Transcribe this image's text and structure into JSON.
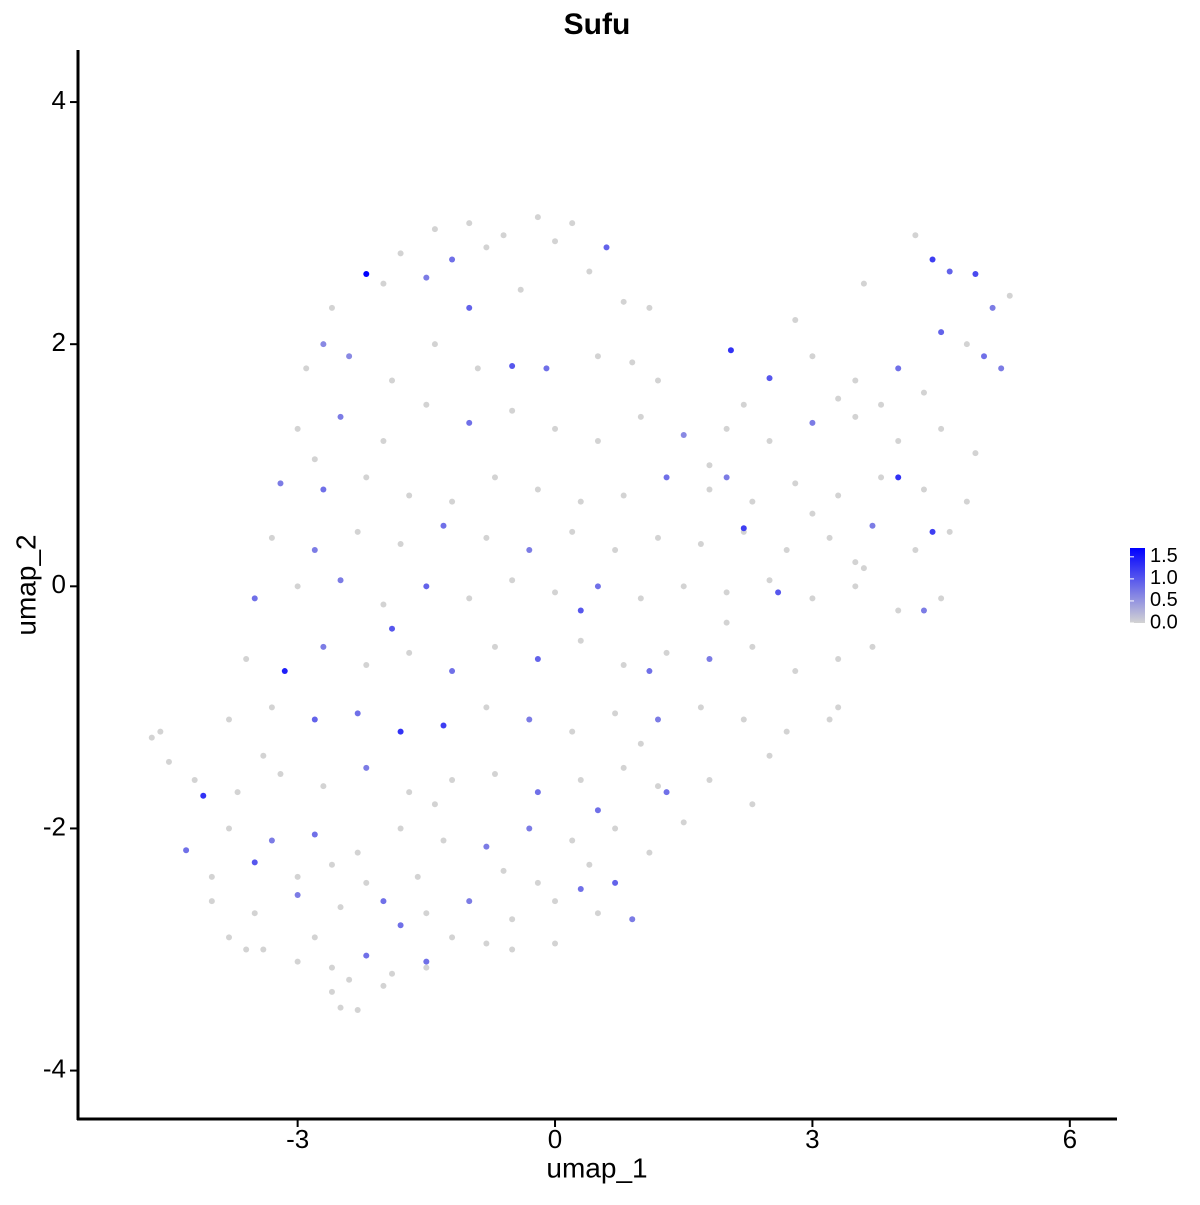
{
  "chart_data": {
    "type": "scatter",
    "title": "Sufu",
    "xlabel": "umap_1",
    "ylabel": "umap_2",
    "x": [
      -1.4,
      -1.0,
      -0.6,
      -0.2,
      0.2,
      -1.8,
      -1.2,
      -0.8,
      0.0,
      0.6,
      -2.2,
      -2.6,
      -2.0,
      -1.5,
      -0.4,
      0.4,
      0.8,
      -2.7,
      1.1,
      -1.0,
      -2.9,
      -2.4,
      -1.9,
      -1.4,
      -0.9,
      -0.5,
      -0.1,
      0.5,
      0.9,
      1.2,
      4.2,
      4.4,
      4.6,
      4.9,
      5.1,
      5.3,
      4.5,
      4.8,
      3.6,
      2.8,
      2.05,
      2.5,
      3.0,
      3.5,
      4.0,
      2.2,
      3.3,
      4.3,
      5.0,
      5.2,
      -3.0,
      -2.5,
      -2.0,
      -1.5,
      -1.0,
      -0.5,
      0.0,
      0.5,
      1.0,
      1.5,
      2.0,
      2.5,
      3.0,
      3.5,
      4.0,
      4.5,
      4.9,
      1.8,
      3.8,
      -2.8,
      -3.2,
      -2.7,
      -2.2,
      -1.7,
      -1.2,
      -0.7,
      -0.2,
      0.3,
      0.8,
      1.3,
      1.8,
      2.3,
      2.8,
      3.3,
      3.8,
      4.3,
      4.8,
      4.0,
      2.0,
      3.0,
      -3.3,
      -2.8,
      -2.3,
      -1.8,
      -1.3,
      -0.8,
      -0.3,
      0.2,
      0.7,
      1.2,
      1.7,
      2.2,
      2.7,
      3.2,
      3.7,
      4.2,
      4.6,
      4.4,
      2.2,
      3.5,
      -3.5,
      -3.0,
      -2.5,
      -2.0,
      -1.5,
      -1.0,
      -0.5,
      0.0,
      0.5,
      1.0,
      1.5,
      2.0,
      2.5,
      3.0,
      3.5,
      4.0,
      4.5,
      2.6,
      3.6,
      4.3,
      -3.6,
      -3.15,
      -2.7,
      -2.2,
      -1.7,
      -1.2,
      -0.7,
      -0.2,
      0.3,
      0.8,
      1.3,
      1.8,
      2.3,
      2.8,
      3.3,
      3.7,
      1.1,
      2.0,
      0.3,
      -1.9,
      -3.8,
      -3.3,
      -2.8,
      -2.3,
      -1.8,
      -1.3,
      -0.8,
      -0.3,
      0.2,
      0.7,
      1.2,
      1.7,
      2.2,
      2.7,
      3.2,
      3.3,
      1.0,
      -4.7,
      -4.6,
      -4.5,
      -4.2,
      -3.7,
      -3.2,
      -2.7,
      -2.2,
      -1.7,
      -1.2,
      -0.7,
      -0.2,
      0.3,
      0.8,
      1.3,
      1.8,
      2.3,
      2.5,
      -4.1,
      -3.4,
      0.5,
      -1.4,
      1.2,
      -4.3,
      -3.8,
      -3.3,
      -2.8,
      -2.3,
      -1.8,
      -1.3,
      -0.8,
      -0.3,
      0.2,
      0.7,
      1.1,
      1.5,
      -3.5,
      -2.6,
      -1.6,
      -0.6,
      0.4,
      -4.0,
      -3.0,
      -4.0,
      -3.5,
      -3.0,
      -2.5,
      -2.0,
      -1.5,
      -1.0,
      -0.5,
      0.0,
      0.5,
      0.9,
      0.3,
      -0.2,
      -2.2,
      -3.8,
      -1.8,
      -2.8,
      0.7,
      -1.2,
      -0.8,
      -3.4,
      -3.0,
      -2.6,
      -2.2,
      -1.9,
      -1.5,
      -0.5,
      0.0,
      -3.6,
      -2.4,
      -2.6,
      -2.3,
      -2.0,
      -2.5,
      -1.5
    ],
    "y": [
      2.95,
      3.0,
      2.9,
      3.05,
      3.0,
      2.75,
      2.7,
      2.8,
      2.85,
      2.8,
      2.58,
      2.3,
      2.5,
      2.55,
      2.45,
      2.6,
      2.35,
      2.0,
      2.3,
      2.3,
      1.8,
      1.9,
      1.7,
      2.0,
      1.8,
      1.82,
      1.8,
      1.9,
      1.85,
      1.7,
      2.9,
      2.7,
      2.6,
      2.58,
      2.3,
      2.4,
      2.1,
      2.0,
      2.5,
      2.2,
      1.95,
      1.72,
      1.9,
      1.7,
      1.8,
      1.5,
      1.55,
      1.6,
      1.9,
      1.8,
      1.3,
      1.4,
      1.2,
      1.5,
      1.35,
      1.45,
      1.3,
      1.2,
      1.4,
      1.25,
      1.3,
      1.2,
      1.35,
      1.4,
      1.2,
      1.3,
      1.1,
      1.0,
      1.5,
      1.05,
      0.85,
      0.8,
      0.9,
      0.75,
      0.7,
      0.9,
      0.8,
      0.7,
      0.75,
      0.9,
      0.8,
      0.7,
      0.85,
      0.75,
      0.9,
      0.8,
      0.7,
      0.9,
      0.9,
      0.6,
      0.4,
      0.3,
      0.45,
      0.35,
      0.5,
      0.4,
      0.3,
      0.45,
      0.3,
      0.4,
      0.35,
      0.45,
      0.3,
      0.4,
      0.5,
      0.3,
      0.45,
      0.45,
      0.48,
      0.2,
      -0.1,
      0.0,
      0.05,
      -0.15,
      0.0,
      -0.1,
      0.05,
      -0.05,
      0.0,
      -0.1,
      0.0,
      -0.05,
      0.05,
      -0.1,
      0.0,
      -0.2,
      -0.1,
      -0.05,
      0.15,
      -0.2,
      -0.6,
      -0.7,
      -0.5,
      -0.65,
      -0.55,
      -0.7,
      -0.5,
      -0.6,
      -0.45,
      -0.65,
      -0.55,
      -0.6,
      -0.5,
      -0.7,
      -0.6,
      -0.5,
      -0.7,
      -0.3,
      -0.2,
      -0.35,
      -1.1,
      -1.0,
      -1.1,
      -1.05,
      -1.2,
      -1.15,
      -1.0,
      -1.1,
      -1.2,
      -1.05,
      -1.1,
      -1.0,
      -1.1,
      -1.2,
      -1.1,
      -1.0,
      -1.3,
      -1.25,
      -1.2,
      -1.45,
      -1.6,
      -1.7,
      -1.55,
      -1.65,
      -1.5,
      -1.7,
      -1.6,
      -1.55,
      -1.7,
      -1.6,
      -1.5,
      -1.7,
      -1.6,
      -1.8,
      -1.4,
      -1.73,
      -1.4,
      -1.85,
      -1.8,
      -1.65,
      -2.18,
      -2.0,
      -2.1,
      -2.05,
      -2.2,
      -2.0,
      -2.1,
      -2.15,
      -2.0,
      -2.1,
      -2.0,
      -2.2,
      -1.95,
      -2.28,
      -2.3,
      -2.4,
      -2.35,
      -2.3,
      -2.4,
      -2.4,
      -2.6,
      -2.7,
      -2.55,
      -2.65,
      -2.6,
      -2.7,
      -2.6,
      -2.75,
      -2.6,
      -2.7,
      -2.75,
      -2.5,
      -2.45,
      -2.45,
      -2.9,
      -2.8,
      -2.9,
      -2.45,
      -2.9,
      -2.95,
      -3.0,
      -3.1,
      -3.15,
      -3.05,
      -3.2,
      -3.1,
      -3.0,
      -2.95,
      -3.0,
      -3.25,
      -3.35,
      -3.5,
      -3.3,
      -3.48,
      -3.15
    ],
    "expression": [
      0,
      0,
      0,
      0,
      0,
      0,
      0.8,
      0,
      0,
      0.9,
      1.7,
      0,
      0,
      0.7,
      0,
      0,
      0,
      0.6,
      0,
      0.9,
      0,
      0.6,
      0,
      0,
      0,
      1.0,
      0.8,
      0,
      0,
      0,
      0,
      1.2,
      0.9,
      1.1,
      0.7,
      0,
      0.9,
      0,
      0,
      0,
      1.3,
      1.0,
      0,
      0,
      0.8,
      0,
      0,
      0,
      0.8,
      0.7,
      0,
      0.7,
      0,
      0,
      0.8,
      0,
      0,
      0,
      0,
      0.6,
      0,
      0,
      0.7,
      0,
      0,
      0,
      0,
      0,
      0,
      0,
      0.7,
      0.8,
      0,
      0,
      0,
      0,
      0,
      0,
      0,
      0.8,
      0,
      0,
      0,
      0,
      0,
      0,
      0,
      1.3,
      0.7,
      0,
      0,
      0.7,
      0,
      0,
      0.8,
      0,
      0.7,
      0,
      0,
      0,
      0,
      0,
      0,
      0,
      0.7,
      0,
      0,
      1.2,
      1.2,
      0,
      0.8,
      0,
      0.7,
      0,
      0.9,
      0,
      0,
      0,
      0.8,
      0,
      0,
      0,
      0,
      0,
      0,
      0,
      0,
      1.0,
      0,
      0.7,
      0,
      1.45,
      0.7,
      0,
      0,
      0.8,
      0,
      0.9,
      0,
      0,
      0,
      0.7,
      0,
      0,
      0,
      0,
      0.8,
      0,
      1.0,
      1.0,
      0,
      0,
      0.9,
      0.8,
      1.3,
      1.2,
      0,
      0.7,
      0,
      0,
      0.7,
      0,
      0,
      0,
      0,
      0,
      0,
      0,
      0,
      0,
      0,
      0,
      0,
      0,
      0.7,
      0,
      0,
      0,
      0.8,
      0,
      0,
      0.8,
      0,
      0,
      0,
      1.3,
      0,
      0.8,
      0,
      0,
      0.8,
      0,
      0.7,
      0.8,
      0,
      0,
      0,
      0.7,
      0.7,
      0,
      0,
      0,
      0,
      1.0,
      0,
      0,
      0,
      0,
      0,
      0,
      0,
      0,
      0.7,
      0,
      0.8,
      0,
      0.7,
      0,
      0,
      0,
      0.7,
      0.8,
      0,
      0,
      0,
      0.8,
      0,
      0.9,
      0,
      0,
      0,
      0,
      0,
      0.8,
      0,
      0.8,
      0,
      0,
      0,
      0,
      0,
      0,
      0,
      0,
      0
    ],
    "xlim": [
      -5.56,
      6.55
    ],
    "ylim": [
      -4.4,
      4.43
    ],
    "xticks": [
      -3,
      0,
      3,
      6
    ],
    "yticks": [
      -4,
      -2,
      0,
      2,
      4
    ],
    "colorbar": {
      "colors": [
        "#d3d3d3",
        "#0000ff"
      ],
      "lim": [
        0,
        1.7
      ],
      "ticks": [
        {
          "value": 0,
          "label": "0.0"
        },
        {
          "value": 0.5,
          "label": "0.5"
        },
        {
          "value": 1,
          "label": "1.0"
        },
        {
          "value": 1.5,
          "label": "1.5"
        }
      ]
    }
  }
}
